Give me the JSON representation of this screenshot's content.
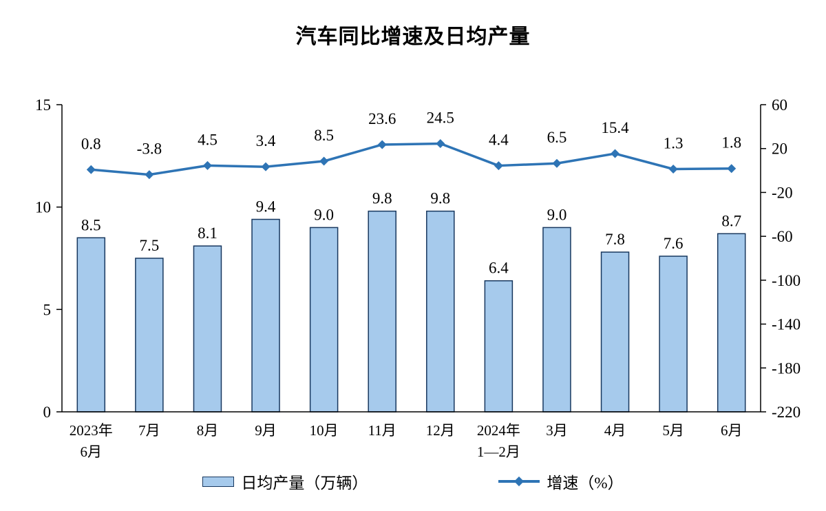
{
  "title": "汽车同比增速及日均产量",
  "legend": {
    "bar_label": "日均产量（万辆）",
    "line_label": "增速（%）"
  },
  "colors": {
    "bar_fill": "#A6CAEC",
    "bar_stroke": "#17375E",
    "line": "#2E74B5",
    "axis": "#000000",
    "text": "#000000"
  },
  "chart_data": {
    "type": "bar+line",
    "title": "汽车同比增速及日均产量",
    "categories": [
      "2023年\n6月",
      "7月",
      "8月",
      "9月",
      "10月",
      "11月",
      "12月",
      "2024年\n1—2月",
      "3月",
      "4月",
      "5月",
      "6月"
    ],
    "series": [
      {
        "name": "日均产量（万辆）",
        "type": "bar",
        "axis": "left",
        "values": [
          8.5,
          7.5,
          8.1,
          9.4,
          9.0,
          9.8,
          9.8,
          6.4,
          9.0,
          7.8,
          7.6,
          8.7
        ]
      },
      {
        "name": "增速（%）",
        "type": "line",
        "axis": "right",
        "values": [
          0.8,
          -3.8,
          4.5,
          3.4,
          8.5,
          23.6,
          24.5,
          4.4,
          6.5,
          15.4,
          1.3,
          1.8
        ]
      }
    ],
    "left_axis": {
      "min": 0,
      "max": 15,
      "ticks": [
        0,
        5,
        10,
        15
      ]
    },
    "right_axis": {
      "min": -220,
      "max": 60,
      "ticks": [
        60,
        20,
        -20,
        -60,
        -100,
        -140,
        -180,
        -220
      ]
    },
    "grid": false,
    "legend_position": "bottom",
    "data_labels": true
  }
}
